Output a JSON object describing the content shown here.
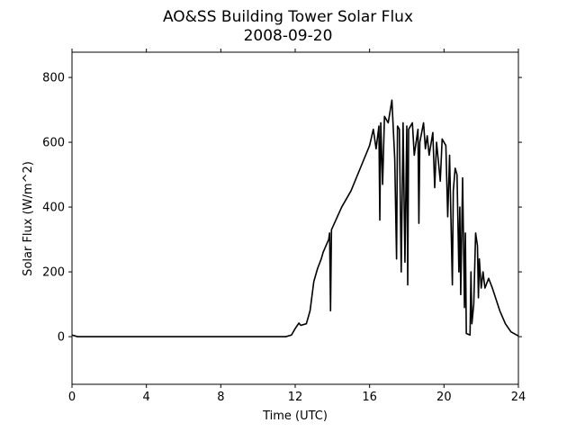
{
  "chart_data": {
    "type": "line",
    "title": "AO&SS Building Tower Solar Flux",
    "subtitle": "2008-09-20",
    "xlabel": "Time (UTC)",
    "ylabel": "Solar Flux (W/m^2)",
    "color": "#000000",
    "x": [
      0,
      0.3,
      11.5,
      11.8,
      12.0,
      12.2,
      12.3,
      12.6,
      12.8,
      13.0,
      13.2,
      13.4,
      13.5,
      13.8,
      13.85,
      13.9,
      13.95,
      14.5,
      15.0,
      15.5,
      16.0,
      16.2,
      16.35,
      16.5,
      16.55,
      16.6,
      16.7,
      16.8,
      17.0,
      17.2,
      17.35,
      17.45,
      17.5,
      17.6,
      17.7,
      17.8,
      17.9,
      18.0,
      18.05,
      18.1,
      18.3,
      18.4,
      18.6,
      18.65,
      18.7,
      18.9,
      19.0,
      19.1,
      19.2,
      19.4,
      19.5,
      19.6,
      19.8,
      19.9,
      20.1,
      20.2,
      20.3,
      20.45,
      20.5,
      20.6,
      20.7,
      20.8,
      20.85,
      20.9,
      21.0,
      21.1,
      21.15,
      21.2,
      21.4,
      21.45,
      21.5,
      21.6,
      21.7,
      21.8,
      21.85,
      21.9,
      22.0,
      22.1,
      22.2,
      22.4,
      22.6,
      23.0,
      23.3,
      23.6,
      24.0
    ],
    "values": [
      5,
      0,
      0,
      5,
      25,
      42,
      35,
      40,
      80,
      170,
      210,
      240,
      260,
      300,
      320,
      80,
      330,
      400,
      450,
      520,
      590,
      640,
      580,
      650,
      360,
      660,
      470,
      680,
      660,
      730,
      550,
      240,
      650,
      640,
      200,
      660,
      230,
      650,
      160,
      640,
      660,
      560,
      640,
      350,
      600,
      660,
      580,
      620,
      560,
      630,
      460,
      600,
      480,
      610,
      590,
      370,
      560,
      160,
      450,
      520,
      500,
      200,
      400,
      130,
      490,
      90,
      320,
      10,
      5,
      200,
      40,
      100,
      320,
      280,
      120,
      240,
      150,
      200,
      150,
      180,
      150,
      80,
      40,
      15,
      2
    ],
    "xlim": [
      0,
      24
    ],
    "xticks": [
      0,
      4,
      8,
      12,
      16,
      20,
      24
    ],
    "ylim": [
      -147,
      878
    ],
    "yticks": [
      0,
      200,
      400,
      600,
      800
    ]
  }
}
